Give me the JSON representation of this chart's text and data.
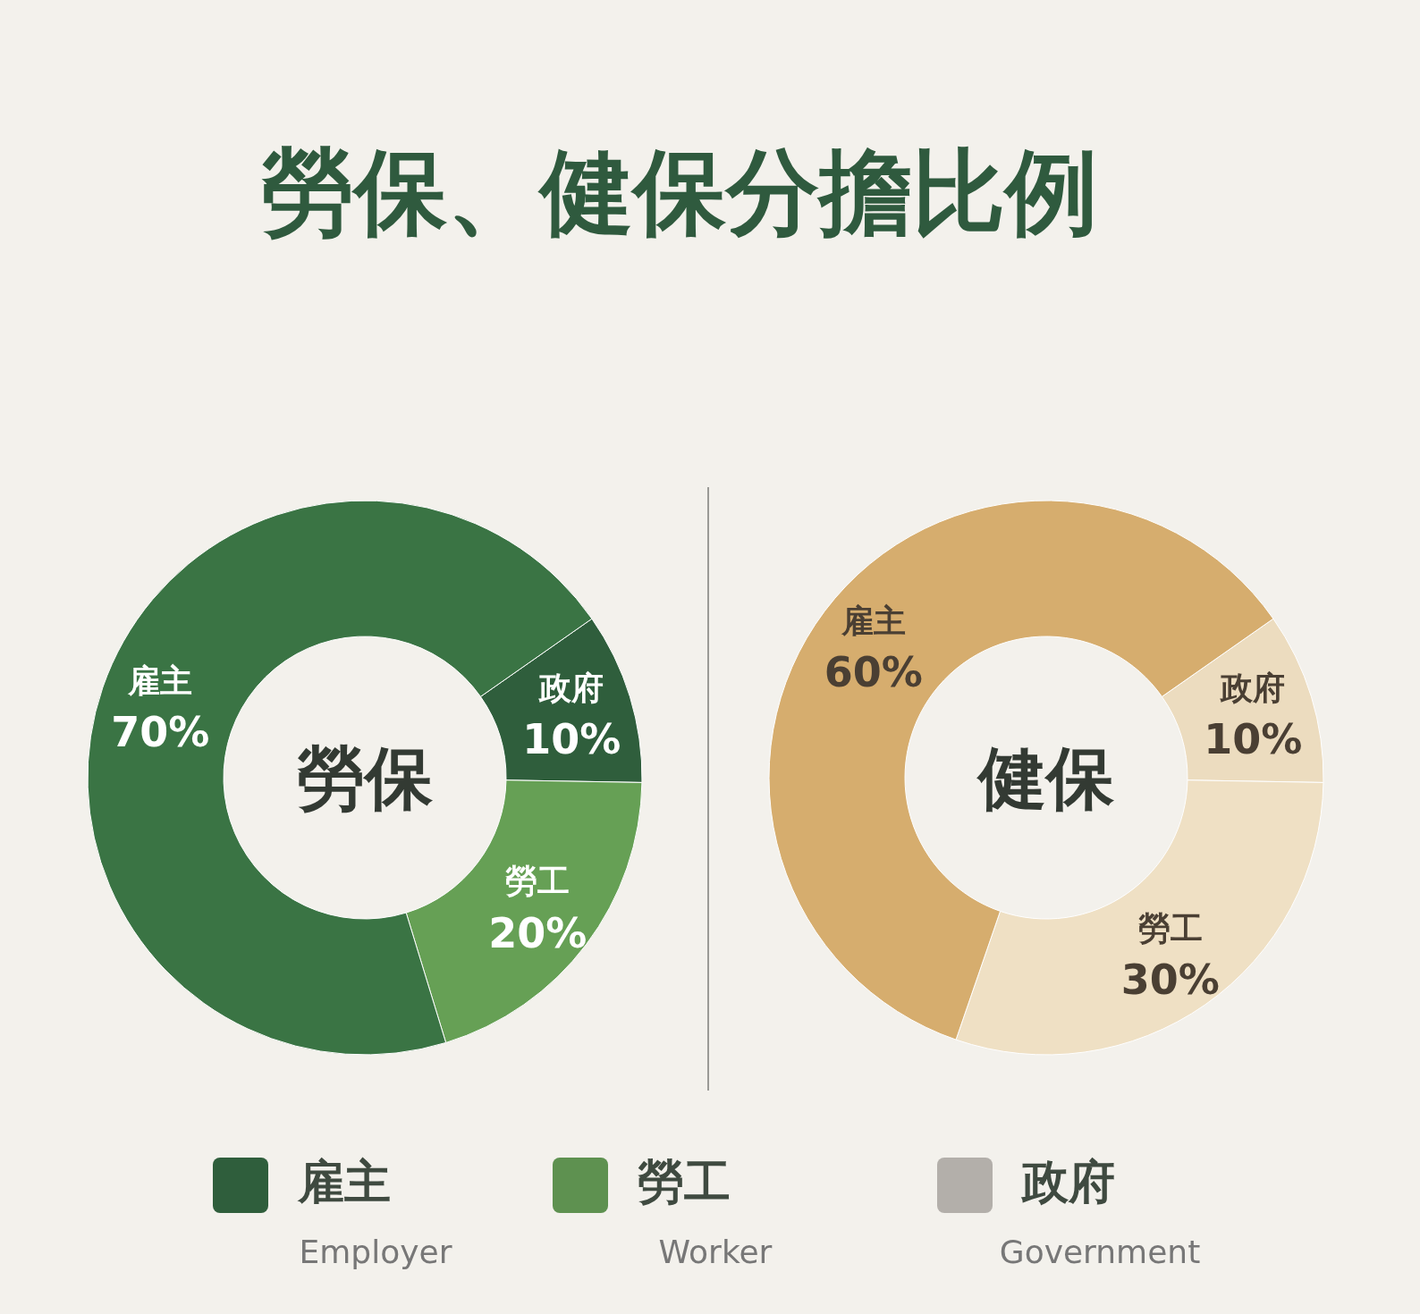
{
  "chart_data": [
    {
      "type": "donut",
      "title": "勞保",
      "categories": [
        "雇主",
        "勞工",
        "政府"
      ],
      "values": [
        70,
        20,
        10
      ],
      "value_labels": [
        "70%",
        "20%",
        "10%"
      ],
      "colors": [
        "#3a7444",
        "#66a055",
        "#2f5e3c"
      ]
    },
    {
      "type": "donut",
      "title": "健保",
      "categories": [
        "雇主",
        "勞工",
        "政府"
      ],
      "values": [
        60,
        30,
        10
      ],
      "value_labels": [
        "60%",
        "30%",
        "10%"
      ],
      "colors": [
        "#d6ad6e",
        "#efe0c4",
        "#ecdcbf"
      ]
    },
    {
      "type": "other",
      "title": "勞保、健保分擔比例",
      "categories": [
        "雇主",
        "勞工",
        "政府"
      ],
      "annotations": [
        "Employer",
        "Worker",
        "Government"
      ],
      "colors": [
        "#2f5e3c",
        "#5e9150",
        "#b3afaa"
      ]
    }
  ]
}
